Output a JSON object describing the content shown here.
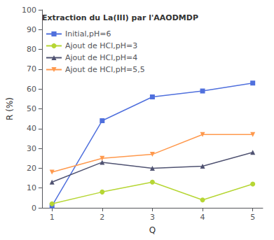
{
  "chart_data": {
    "type": "line",
    "x": [
      1,
      2,
      3,
      4,
      5
    ],
    "series": [
      {
        "name": "Initial,pH=6",
        "values": [
          1,
          44,
          56,
          59,
          63
        ],
        "marker": "square"
      },
      {
        "name": "Ajout de HCl,pH=3",
        "values": [
          2,
          8,
          13,
          4,
          12
        ],
        "marker": "circle"
      },
      {
        "name": "Ajout de HCl,pH=4",
        "values": [
          13,
          23,
          20,
          21,
          28
        ],
        "marker": "triangle_up"
      },
      {
        "name": "Ajout de HCl,pH=5,5",
        "values": [
          18,
          25,
          27,
          37,
          37
        ],
        "marker": "triangle_down"
      }
    ],
    "xlabel": "Q",
    "ylabel": "R (%)",
    "xlim": [
      0.8,
      5.2
    ],
    "ylim": [
      0,
      100
    ],
    "xticks": [
      1,
      2,
      3,
      4,
      5
    ],
    "yticks": [
      0,
      10,
      20,
      30,
      40,
      50,
      60,
      70,
      80,
      90,
      100
    ],
    "legend_title": "Extraction du La(III) par l'AAODMDP",
    "legend": "upper left",
    "grid": false
  }
}
